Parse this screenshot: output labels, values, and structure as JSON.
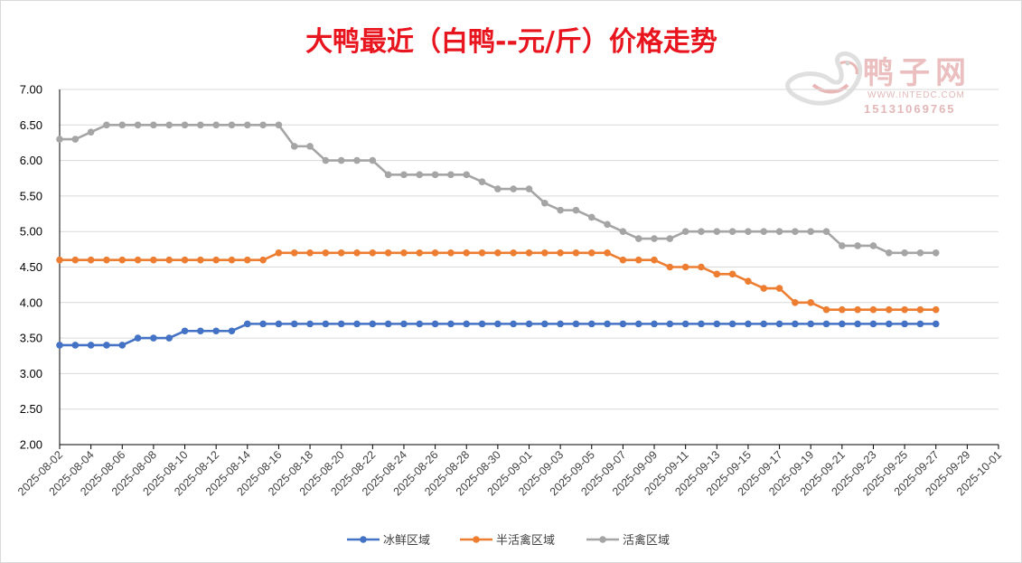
{
  "colors": {
    "title": "#e8141e",
    "series": [
      "#4472c4",
      "#ed7d31",
      "#a5a5a5"
    ],
    "grid": "#d9d9d9",
    "axis": "#000000"
  },
  "watermark": {
    "name": "鸭子网",
    "url": "WWW.INTEDC.COM",
    "phone": "15131069765"
  },
  "chart_data": {
    "type": "line",
    "title": "大鸭最近（白鸭--元/斤）价格走势",
    "xlabel": "",
    "ylabel": "",
    "ylim": [
      2.0,
      7.0
    ],
    "y_ticks": [
      "2.00",
      "2.50",
      "3.00",
      "3.50",
      "4.00",
      "4.50",
      "5.00",
      "5.50",
      "6.00",
      "6.50",
      "7.00"
    ],
    "x_range": [
      "2025-08-02",
      "2025-10-01"
    ],
    "x_ticks": [
      "2025-08-02",
      "2025-08-04",
      "2025-08-06",
      "2025-08-08",
      "2025-08-10",
      "2025-08-12",
      "2025-08-14",
      "2025-08-16",
      "2025-08-18",
      "2025-08-20",
      "2025-08-22",
      "2025-08-24",
      "2025-08-26",
      "2025-08-28",
      "2025-08-30",
      "2025-09-01",
      "2025-09-03",
      "2025-09-05",
      "2025-09-07",
      "2025-09-09",
      "2025-09-11",
      "2025-09-13",
      "2025-09-15",
      "2025-09-17",
      "2025-09-19",
      "2025-09-21",
      "2025-09-23",
      "2025-09-25",
      "2025-09-27",
      "2025-09-29",
      "2025-10-01"
    ],
    "grid": true,
    "legend_position": "bottom",
    "x_start": "2025-08-02",
    "series": [
      {
        "name": "冰鲜区域",
        "values": [
          3.4,
          3.4,
          3.4,
          3.4,
          3.4,
          3.5,
          3.5,
          3.5,
          3.6,
          3.6,
          3.6,
          3.6,
          3.7,
          3.7,
          3.7,
          3.7,
          3.7,
          3.7,
          3.7,
          3.7,
          3.7,
          3.7,
          3.7,
          3.7,
          3.7,
          3.7,
          3.7,
          3.7,
          3.7,
          3.7,
          3.7,
          3.7,
          3.7,
          3.7,
          3.7,
          3.7,
          3.7,
          3.7,
          3.7,
          3.7,
          3.7,
          3.7,
          3.7,
          3.7,
          3.7,
          3.7,
          3.7,
          3.7,
          3.7,
          3.7,
          3.7,
          3.7,
          3.7,
          3.7,
          3.7,
          3.7,
          3.7
        ]
      },
      {
        "name": "半活禽区域",
        "values": [
          4.6,
          4.6,
          4.6,
          4.6,
          4.6,
          4.6,
          4.6,
          4.6,
          4.6,
          4.6,
          4.6,
          4.6,
          4.6,
          4.6,
          4.7,
          4.7,
          4.7,
          4.7,
          4.7,
          4.7,
          4.7,
          4.7,
          4.7,
          4.7,
          4.7,
          4.7,
          4.7,
          4.7,
          4.7,
          4.7,
          4.7,
          4.7,
          4.7,
          4.7,
          4.7,
          4.7,
          4.6,
          4.6,
          4.6,
          4.5,
          4.5,
          4.5,
          4.4,
          4.4,
          4.3,
          4.2,
          4.2,
          4.0,
          4.0,
          3.9,
          3.9,
          3.9,
          3.9,
          3.9,
          3.9,
          3.9,
          3.9
        ]
      },
      {
        "name": "活禽区域",
        "values": [
          6.3,
          6.3,
          6.4,
          6.5,
          6.5,
          6.5,
          6.5,
          6.5,
          6.5,
          6.5,
          6.5,
          6.5,
          6.5,
          6.5,
          6.5,
          6.2,
          6.2,
          6.0,
          6.0,
          6.0,
          6.0,
          5.8,
          5.8,
          5.8,
          5.8,
          5.8,
          5.8,
          5.7,
          5.6,
          5.6,
          5.6,
          5.4,
          5.3,
          5.3,
          5.2,
          5.1,
          5.0,
          4.9,
          4.9,
          4.9,
          5.0,
          5.0,
          5.0,
          5.0,
          5.0,
          5.0,
          5.0,
          5.0,
          5.0,
          5.0,
          4.8,
          4.8,
          4.8,
          4.7,
          4.7,
          4.7,
          4.7
        ]
      }
    ]
  }
}
